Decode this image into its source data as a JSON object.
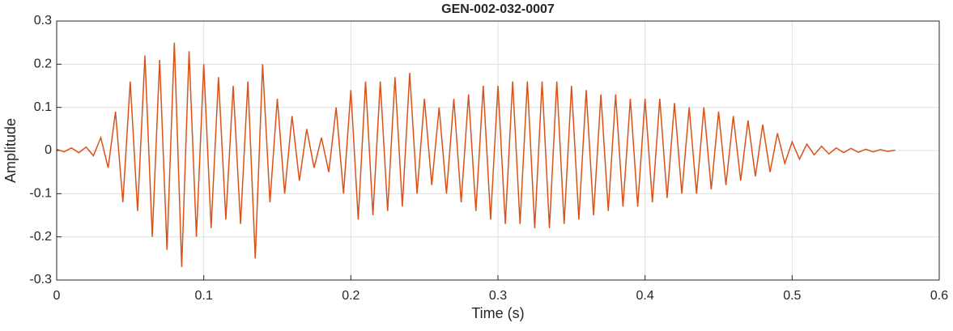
{
  "chart_data": {
    "type": "line",
    "title": "GEN-002-032-0007",
    "x_label": "Time (s)",
    "y_label": "Amplitude",
    "x": [
      0,
      0.005,
      0.01,
      0.015,
      0.02,
      0.025,
      0.03,
      0.035,
      0.04,
      0.045,
      0.05,
      0.055,
      0.06,
      0.065,
      0.07,
      0.075,
      0.08,
      0.085,
      0.09,
      0.095,
      0.1,
      0.105,
      0.11,
      0.115,
      0.12,
      0.125,
      0.13,
      0.135,
      0.14,
      0.145,
      0.15,
      0.155,
      0.16,
      0.165,
      0.17,
      0.175,
      0.18,
      0.185,
      0.19,
      0.195,
      0.2,
      0.205,
      0.21,
      0.215,
      0.22,
      0.225,
      0.23,
      0.235,
      0.24,
      0.245,
      0.25,
      0.255,
      0.26,
      0.265,
      0.27,
      0.275,
      0.28,
      0.285,
      0.29,
      0.295,
      0.3,
      0.305,
      0.31,
      0.315,
      0.32,
      0.325,
      0.33,
      0.335,
      0.34,
      0.345,
      0.35,
      0.355,
      0.36,
      0.365,
      0.37,
      0.375,
      0.38,
      0.385,
      0.39,
      0.395,
      0.4,
      0.405,
      0.41,
      0.415,
      0.42,
      0.425,
      0.43,
      0.435,
      0.44,
      0.445,
      0.45,
      0.455,
      0.46,
      0.465,
      0.47,
      0.475,
      0.48,
      0.485,
      0.49,
      0.495,
      0.5,
      0.505,
      0.51,
      0.515,
      0.52,
      0.525,
      0.53,
      0.535,
      0.54,
      0.545,
      0.55,
      0.555,
      0.56,
      0.565,
      0.57
    ],
    "series": [
      {
        "color": "#d95319",
        "values": [
          0.003,
          -0.003,
          0.006,
          -0.005,
          0.008,
          -0.012,
          0.03,
          -0.04,
          0.09,
          -0.12,
          0.16,
          -0.14,
          0.22,
          -0.2,
          0.21,
          -0.23,
          0.25,
          -0.27,
          0.23,
          -0.2,
          0.2,
          -0.18,
          0.17,
          -0.16,
          0.15,
          -0.17,
          0.16,
          -0.25,
          0.2,
          -0.12,
          0.12,
          -0.1,
          0.08,
          -0.07,
          0.05,
          -0.04,
          0.03,
          -0.05,
          0.1,
          -0.1,
          0.14,
          -0.16,
          0.16,
          -0.15,
          0.16,
          -0.14,
          0.17,
          -0.13,
          0.18,
          -0.1,
          0.12,
          -0.08,
          0.1,
          -0.1,
          0.12,
          -0.12,
          0.13,
          -0.14,
          0.15,
          -0.16,
          0.15,
          -0.17,
          0.16,
          -0.17,
          0.16,
          -0.18,
          0.16,
          -0.18,
          0.16,
          -0.17,
          0.15,
          -0.16,
          0.14,
          -0.15,
          0.13,
          -0.14,
          0.13,
          -0.13,
          0.12,
          -0.13,
          0.12,
          -0.12,
          0.12,
          -0.11,
          0.11,
          -0.1,
          0.1,
          -0.1,
          0.1,
          -0.09,
          0.09,
          -0.08,
          0.08,
          -0.07,
          0.07,
          -0.06,
          0.06,
          -0.05,
          0.04,
          -0.03,
          0.02,
          -0.02,
          0.015,
          -0.01,
          0.01,
          -0.008,
          0.006,
          -0.005,
          0.005,
          -0.004,
          0.003,
          -0.003,
          0.002,
          -0.002,
          0.001
        ]
      }
    ],
    "xlim": [
      0,
      0.6
    ],
    "xticks": [
      0,
      0.1,
      0.2,
      0.3,
      0.4,
      0.5,
      0.6
    ],
    "ylim": [
      -0.3,
      0.3
    ],
    "yticks": [
      -0.3,
      -0.2,
      -0.1,
      0,
      0.1,
      0.2,
      0.3
    ],
    "grid": true
  }
}
